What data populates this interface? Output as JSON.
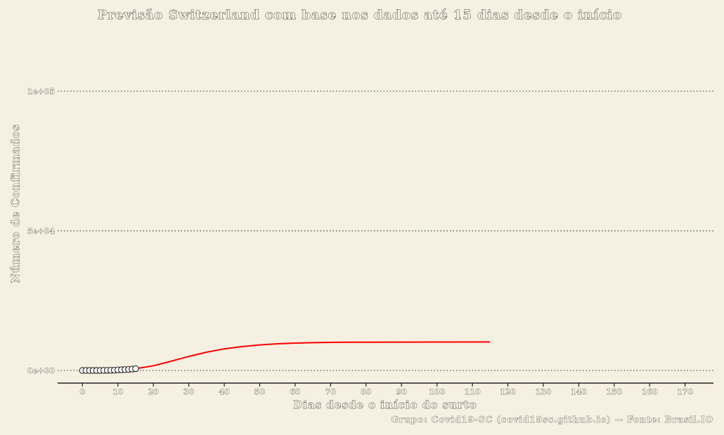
{
  "chart_data": {
    "type": "line",
    "title": "Previsão Switzerland com base nos dados até 15 dias desde o início",
    "xlabel": "Dias desde o início do surto",
    "ylabel": "Número de Confirmados",
    "caption": "Grupo: Covid19-SC (covid19sc.github.io) -- Fonte: Brasil.IO",
    "xlim": [
      -7,
      178
    ],
    "ylim": [
      -3000,
      103000
    ],
    "x_ticks": [
      0,
      10,
      20,
      30,
      40,
      50,
      60,
      70,
      80,
      90,
      100,
      110,
      120,
      130,
      140,
      150,
      160,
      170
    ],
    "y_ticks": [
      {
        "value": 0,
        "label": "0e+00"
      },
      {
        "value": 50000,
        "label": "5e+04"
      },
      {
        "value": 100000,
        "label": "1e+05"
      }
    ],
    "grid": "horizontal-dotted",
    "series": [
      {
        "kind": "observed-points",
        "color": "#222222",
        "x": [
          0,
          1,
          2,
          3,
          4,
          5,
          6,
          7,
          8,
          9,
          10,
          11,
          12,
          13,
          14,
          15
        ],
        "y": [
          1,
          1,
          1,
          1,
          8,
          15,
          30,
          56,
          87,
          120,
          214,
          264,
          321,
          374,
          491,
          651
        ]
      },
      {
        "kind": "forecast-line",
        "color": "#ff0000",
        "x": [
          15,
          20,
          25,
          30,
          35,
          40,
          45,
          50,
          55,
          60,
          65,
          70,
          75,
          80,
          90,
          100,
          115
        ],
        "y": [
          651,
          1700,
          3300,
          5050,
          6550,
          7750,
          8550,
          9150,
          9550,
          9800,
          9950,
          10050,
          10100,
          10130,
          10160,
          10180,
          10200
        ]
      }
    ]
  }
}
